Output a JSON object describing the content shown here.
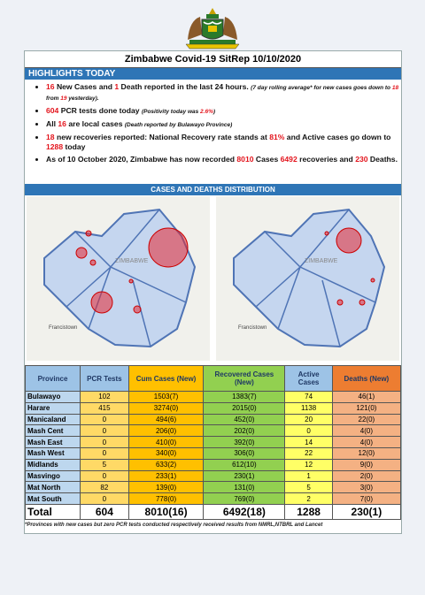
{
  "header": {
    "title": "Zimbabwe Covid-19 SitRep 10/10/2020"
  },
  "highlights": {
    "title": "HIGHLIGHTS TODAY",
    "bullets": [
      [
        "16",
        " New Cases and ",
        "1",
        " Death reported in the last 24 hours. ",
        "(7 day rolling average* for new cases goes down to ",
        "18",
        " from ",
        "19",
        " yesterday)."
      ],
      [
        "604",
        " PCR tests done today ",
        "(Positivity today was ",
        "2.6%",
        ")"
      ],
      [
        "All ",
        "16",
        " are local cases ",
        "(Death reported by Bulawayo Province)"
      ],
      [
        "18",
        " new recoveries reported: National Recovery rate stands at ",
        "81%",
        " and Active cases go down to ",
        "1288",
        " today"
      ],
      [
        "As of 10 October 2020, Zimbabwe has now recorded ",
        "8010",
        " Cases ",
        "6492",
        " recoveries and ",
        "230",
        " Deaths."
      ]
    ]
  },
  "distribution": {
    "title": "CASES AND DEATHS DISTRIBUTION",
    "maps": [
      {
        "labels": [
          "ZIMBABWE",
          "Francistown"
        ]
      },
      {
        "labels": [
          "ZIMBABWE",
          "Francistown"
        ]
      }
    ]
  },
  "table": {
    "header": [
      "Province",
      "PCR Tests",
      "Cum Cases (New)",
      "Recovered Cases (New)",
      "Active Cases",
      "Deaths (New)"
    ],
    "rows": [
      [
        "Bulawayo",
        "102",
        "1503(7)",
        "1383(7)",
        "74",
        "46(1)"
      ],
      [
        "Harare",
        "415",
        "3274(0)",
        "2015(0)",
        "1138",
        "121(0)"
      ],
      [
        "Manicaland",
        "0",
        "494(6)",
        "452(0)",
        "20",
        "22(0)"
      ],
      [
        "Mash Cent",
        "0",
        "206(0)",
        "202(0)",
        "0",
        "4(0)"
      ],
      [
        "Mash East",
        "0",
        "410(0)",
        "392(0)",
        "14",
        "4(0)"
      ],
      [
        "Mash West",
        "0",
        "340(0)",
        "306(0)",
        "22",
        "12(0)"
      ],
      [
        "Midlands",
        "5",
        "633(2)",
        "612(10)",
        "12",
        "9(0)"
      ],
      [
        "Masvingo",
        "0",
        "233(1)",
        "230(1)",
        "1",
        "2(0)"
      ],
      [
        "Mat North",
        "82",
        "139(0)",
        "131(0)",
        "5",
        "3(0)"
      ],
      [
        "Mat South",
        "0",
        "778(0)",
        "769(0)",
        "2",
        "7(0)"
      ]
    ],
    "total": [
      "Total",
      "604",
      "8010(16)",
      "6492(18)",
      "1288",
      "230(1)"
    ]
  },
  "footnote": "*Provinces  with new cases but zero  PCR tests conducted respectively received results from NMRL,NTBRL and Lancet"
}
